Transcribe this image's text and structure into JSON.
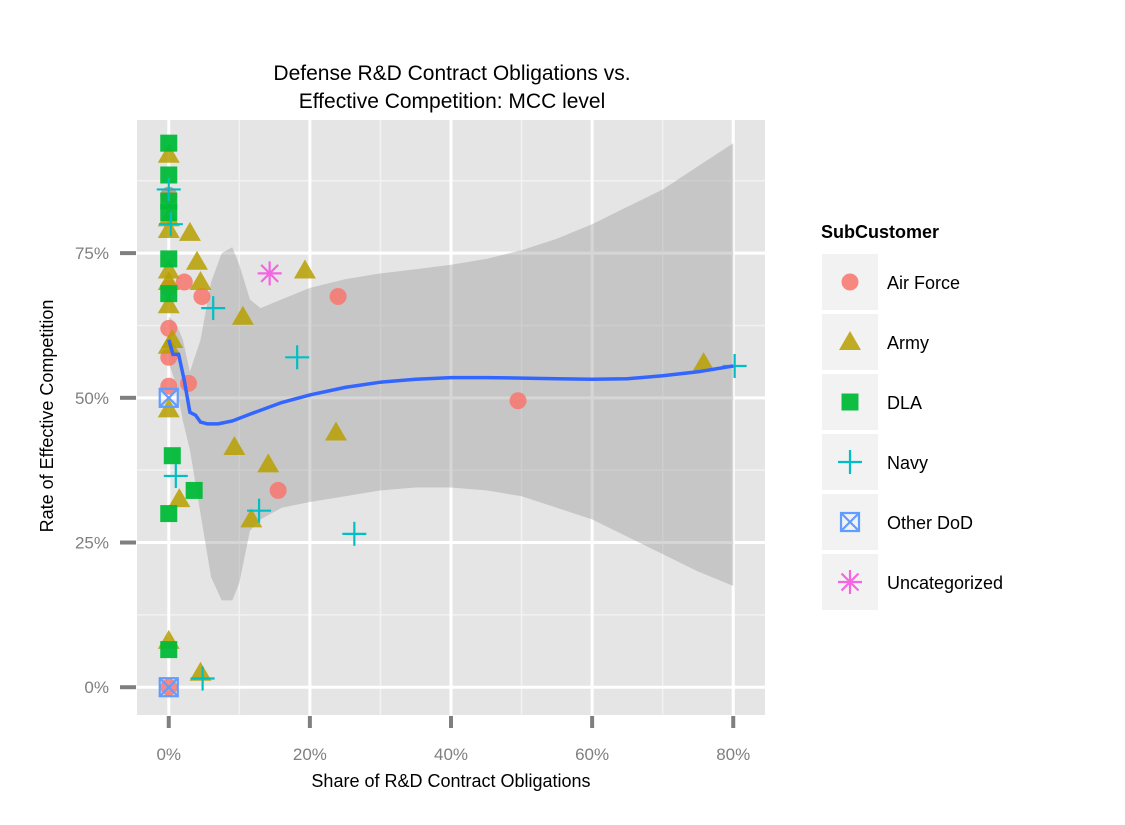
{
  "chart_data": {
    "type": "scatter",
    "title_line1": "Defense R&D Contract Obligations vs.",
    "title_line2": "Effective Competition: MCC level",
    "xlabel": "Share of R&D Contract Obligations",
    "ylabel": "Rate of Effective Competition",
    "xlim": [
      -0.045,
      0.845
    ],
    "ylim": [
      -0.048,
      0.98
    ],
    "x_ticks": [
      0,
      0.2,
      0.4,
      0.6,
      0.8
    ],
    "x_tick_labels": [
      "0%",
      "20%",
      "40%",
      "60%",
      "80%"
    ],
    "y_ticks": [
      0,
      0.25,
      0.5,
      0.75
    ],
    "y_tick_labels": [
      "0%",
      "25%",
      "50%",
      "75%"
    ],
    "legend": {
      "title": "SubCustomer",
      "position": "right",
      "items": [
        {
          "name": "Air Force",
          "color": "#F8766D",
          "shape": "circle"
        },
        {
          "name": "Army",
          "color": "#B79F00",
          "shape": "triangle"
        },
        {
          "name": "DLA",
          "color": "#00BA38",
          "shape": "square"
        },
        {
          "name": "Navy",
          "color": "#00BFC4",
          "shape": "plus"
        },
        {
          "name": "Other DoD",
          "color": "#619CFF",
          "shape": "boxed-x"
        },
        {
          "name": "Uncategorized",
          "color": "#F564E3",
          "shape": "asterisk"
        }
      ]
    },
    "series": [
      {
        "name": "Air Force",
        "points": [
          {
            "x": 0.0,
            "y": 0.85
          },
          {
            "x": 0.0,
            "y": 0.69
          },
          {
            "x": 0.0,
            "y": 0.62
          },
          {
            "x": 0.0,
            "y": 0.57
          },
          {
            "x": 0.0,
            "y": 0.52
          },
          {
            "x": 0.0,
            "y": 0.0
          },
          {
            "x": 0.022,
            "y": 0.7
          },
          {
            "x": 0.028,
            "y": 0.525
          },
          {
            "x": 0.047,
            "y": 0.675
          },
          {
            "x": 0.155,
            "y": 0.34
          },
          {
            "x": 0.24,
            "y": 0.675
          },
          {
            "x": 0.495,
            "y": 0.495
          }
        ]
      },
      {
        "name": "Army",
        "points": [
          {
            "x": 0.0,
            "y": 0.92
          },
          {
            "x": 0.0,
            "y": 0.81
          },
          {
            "x": 0.0,
            "y": 0.79
          },
          {
            "x": 0.0,
            "y": 0.72
          },
          {
            "x": 0.0,
            "y": 0.7
          },
          {
            "x": 0.0,
            "y": 0.66
          },
          {
            "x": 0.0,
            "y": 0.59
          },
          {
            "x": 0.0,
            "y": 0.48
          },
          {
            "x": 0.0,
            "y": 0.08
          },
          {
            "x": 0.005,
            "y": 0.6
          },
          {
            "x": 0.015,
            "y": 0.325
          },
          {
            "x": 0.03,
            "y": 0.785
          },
          {
            "x": 0.04,
            "y": 0.735
          },
          {
            "x": 0.045,
            "y": 0.7
          },
          {
            "x": 0.045,
            "y": 0.025
          },
          {
            "x": 0.093,
            "y": 0.415
          },
          {
            "x": 0.105,
            "y": 0.64
          },
          {
            "x": 0.117,
            "y": 0.29
          },
          {
            "x": 0.141,
            "y": 0.385
          },
          {
            "x": 0.193,
            "y": 0.72
          },
          {
            "x": 0.237,
            "y": 0.44
          },
          {
            "x": 0.758,
            "y": 0.56
          }
        ]
      },
      {
        "name": "DLA",
        "points": [
          {
            "x": 0.0,
            "y": 0.94
          },
          {
            "x": 0.0,
            "y": 0.885
          },
          {
            "x": 0.0,
            "y": 0.84
          },
          {
            "x": 0.0,
            "y": 0.82
          },
          {
            "x": 0.0,
            "y": 0.74
          },
          {
            "x": 0.0,
            "y": 0.68
          },
          {
            "x": 0.0,
            "y": 0.3
          },
          {
            "x": 0.0,
            "y": 0.065
          },
          {
            "x": 0.005,
            "y": 0.4
          },
          {
            "x": 0.036,
            "y": 0.34
          }
        ]
      },
      {
        "name": "Navy",
        "points": [
          {
            "x": 0.0,
            "y": 0.86
          },
          {
            "x": 0.003,
            "y": 0.8
          },
          {
            "x": 0.01,
            "y": 0.365
          },
          {
            "x": 0.048,
            "y": 0.015
          },
          {
            "x": 0.063,
            "y": 0.655
          },
          {
            "x": 0.128,
            "y": 0.305
          },
          {
            "x": 0.182,
            "y": 0.57
          },
          {
            "x": 0.263,
            "y": 0.265
          },
          {
            "x": 0.802,
            "y": 0.555
          }
        ]
      },
      {
        "name": "Other DoD",
        "points": [
          {
            "x": 0.0,
            "y": 0.5
          },
          {
            "x": 0.0,
            "y": 0.0
          }
        ]
      },
      {
        "name": "Uncategorized",
        "points": [
          {
            "x": 0.143,
            "y": 0.715
          }
        ]
      }
    ],
    "smooth_line": [
      [
        0.0,
        0.6
      ],
      [
        0.006,
        0.575
      ],
      [
        0.014,
        0.575
      ],
      [
        0.022,
        0.53
      ],
      [
        0.03,
        0.475
      ],
      [
        0.038,
        0.47
      ],
      [
        0.045,
        0.458
      ],
      [
        0.055,
        0.455
      ],
      [
        0.07,
        0.455
      ],
      [
        0.09,
        0.46
      ],
      [
        0.12,
        0.474
      ],
      [
        0.16,
        0.492
      ],
      [
        0.2,
        0.505
      ],
      [
        0.25,
        0.518
      ],
      [
        0.3,
        0.527
      ],
      [
        0.35,
        0.532
      ],
      [
        0.4,
        0.535
      ],
      [
        0.45,
        0.535
      ],
      [
        0.5,
        0.534
      ],
      [
        0.55,
        0.533
      ],
      [
        0.6,
        0.532
      ],
      [
        0.65,
        0.533
      ],
      [
        0.7,
        0.538
      ],
      [
        0.75,
        0.545
      ],
      [
        0.8,
        0.555
      ]
    ],
    "confidence_band_upper": [
      [
        0.0,
        0.64
      ],
      [
        0.01,
        0.63
      ],
      [
        0.02,
        0.6
      ],
      [
        0.03,
        0.545
      ],
      [
        0.045,
        0.6
      ],
      [
        0.06,
        0.7
      ],
      [
        0.075,
        0.75
      ],
      [
        0.09,
        0.76
      ],
      [
        0.1,
        0.73
      ],
      [
        0.115,
        0.67
      ],
      [
        0.13,
        0.655
      ],
      [
        0.16,
        0.67
      ],
      [
        0.2,
        0.69
      ],
      [
        0.25,
        0.705
      ],
      [
        0.3,
        0.715
      ],
      [
        0.35,
        0.722
      ],
      [
        0.4,
        0.73
      ],
      [
        0.45,
        0.74
      ],
      [
        0.5,
        0.755
      ],
      [
        0.55,
        0.775
      ],
      [
        0.6,
        0.8
      ],
      [
        0.65,
        0.83
      ],
      [
        0.7,
        0.86
      ],
      [
        0.75,
        0.9
      ],
      [
        0.8,
        0.94
      ]
    ],
    "confidence_band_lower": [
      [
        0.0,
        0.56
      ],
      [
        0.01,
        0.525
      ],
      [
        0.02,
        0.46
      ],
      [
        0.03,
        0.41
      ],
      [
        0.045,
        0.3
      ],
      [
        0.06,
        0.19
      ],
      [
        0.075,
        0.15
      ],
      [
        0.09,
        0.15
      ],
      [
        0.1,
        0.18
      ],
      [
        0.115,
        0.27
      ],
      [
        0.13,
        0.29
      ],
      [
        0.16,
        0.31
      ],
      [
        0.2,
        0.32
      ],
      [
        0.25,
        0.33
      ],
      [
        0.3,
        0.34
      ],
      [
        0.35,
        0.345
      ],
      [
        0.4,
        0.345
      ],
      [
        0.45,
        0.34
      ],
      [
        0.5,
        0.33
      ],
      [
        0.55,
        0.31
      ],
      [
        0.6,
        0.29
      ],
      [
        0.65,
        0.26
      ],
      [
        0.7,
        0.23
      ],
      [
        0.75,
        0.2
      ],
      [
        0.8,
        0.175
      ]
    ]
  }
}
